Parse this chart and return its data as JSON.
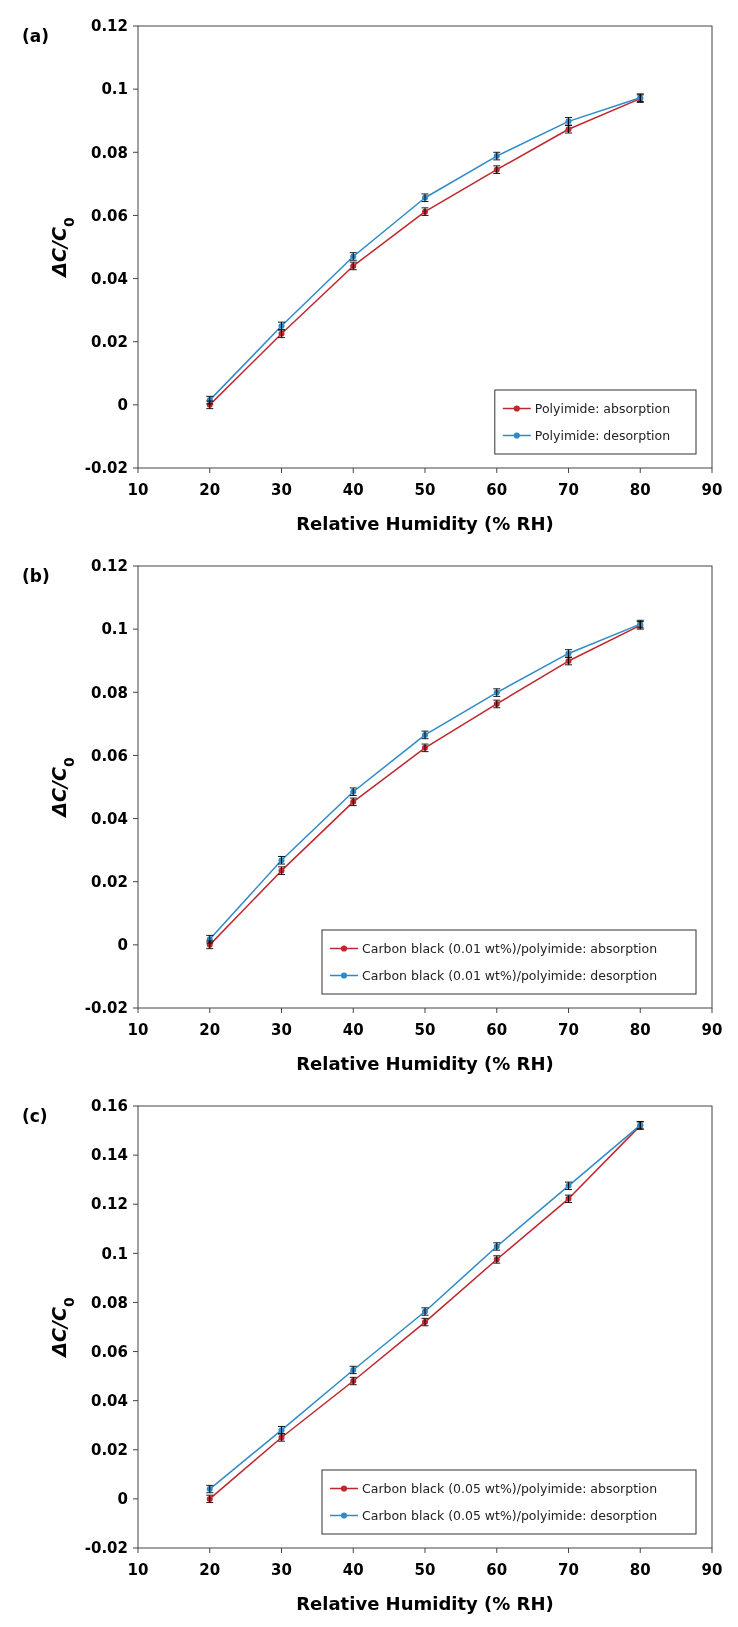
{
  "chart_data": [
    {
      "type": "line",
      "title": "(a)",
      "xlabel": "Relative Humidity (% RH)",
      "ylabel": "ΔC/C$_{0}$",
      "x": [
        20,
        30,
        40,
        50,
        60,
        70,
        80
      ],
      "xlim": [
        10,
        90
      ],
      "xticks": [
        10,
        20,
        30,
        40,
        50,
        60,
        70,
        80,
        90
      ],
      "ylim": [
        -0.02,
        0.12
      ],
      "yticks": [
        -0.02,
        0,
        0.02,
        0.04,
        0.06,
        0.08,
        0.1,
        0.12
      ],
      "grid": false,
      "legend": "bottom right",
      "marker": "circle",
      "line_style": "solid",
      "series": [
        {
          "name": "Polyimide: absorption",
          "color": "#c0262d",
          "values": [
            0,
            0.0225,
            0.044,
            0.0612,
            0.0745,
            0.0873,
            0.097
          ],
          "errors": [
            0.0012,
            0.0012,
            0.0012,
            0.0012,
            0.0012,
            0.0012,
            0.0012
          ]
        },
        {
          "name": "Polyimide: desorption",
          "color": "#2e8bc9",
          "values": [
            0.0015,
            0.025,
            0.047,
            0.0656,
            0.0788,
            0.0898,
            0.0973
          ],
          "errors": [
            0.0012,
            0.0012,
            0.0012,
            0.0012,
            0.0012,
            0.0012,
            0.0012
          ]
        }
      ]
    },
    {
      "type": "line",
      "title": "(b)",
      "xlabel": "Relative Humidity (% RH)",
      "ylabel": "ΔC/C$_{0}$",
      "x": [
        20,
        30,
        40,
        50,
        60,
        70,
        80
      ],
      "xlim": [
        10,
        90
      ],
      "xticks": [
        10,
        20,
        30,
        40,
        50,
        60,
        70,
        80,
        90
      ],
      "ylim": [
        -0.02,
        0.12
      ],
      "yticks": [
        -0.02,
        0,
        0.02,
        0.04,
        0.06,
        0.08,
        0.1,
        0.12
      ],
      "grid": false,
      "legend": "bottom right",
      "marker": "circle",
      "line_style": "solid",
      "series": [
        {
          "name": "Carbon black (0.01 wt%)/polyimide: absorption",
          "color": "#c0262d",
          "values": [
            0,
            0.0235,
            0.0453,
            0.0624,
            0.0763,
            0.0899,
            0.1012
          ],
          "errors": [
            0.0012,
            0.0012,
            0.0012,
            0.0012,
            0.0012,
            0.0012,
            0.0012
          ]
        },
        {
          "name": "Carbon black (0.01 wt%)/polyimide: desorption",
          "color": "#2e8bc9",
          "values": [
            0.0018,
            0.0268,
            0.0485,
            0.0665,
            0.0799,
            0.0923,
            0.1016
          ],
          "errors": [
            0.0012,
            0.0012,
            0.0012,
            0.0012,
            0.0012,
            0.0012,
            0.0012
          ]
        }
      ]
    },
    {
      "type": "line",
      "title": "(c)",
      "xlabel": "Relative Humidity (% RH)",
      "ylabel": "ΔC/C$_{0}$",
      "x": [
        20,
        30,
        40,
        50,
        60,
        70,
        80
      ],
      "xlim": [
        10,
        90
      ],
      "xticks": [
        10,
        20,
        30,
        40,
        50,
        60,
        70,
        80,
        90
      ],
      "ylim": [
        -0.02,
        0.16
      ],
      "yticks": [
        -0.02,
        0,
        0.02,
        0.04,
        0.06,
        0.08,
        0.1,
        0.12,
        0.14,
        0.16
      ],
      "grid": false,
      "legend": "bottom right",
      "marker": "circle",
      "line_style": "solid",
      "series": [
        {
          "name": "Carbon black (0.05 wt%)/polyimide: absorption",
          "color": "#c0262d",
          "values": [
            0,
            0.025,
            0.048,
            0.072,
            0.0975,
            0.1222,
            0.152
          ],
          "errors": [
            0.0015,
            0.0015,
            0.0015,
            0.0015,
            0.0015,
            0.0015,
            0.0015
          ]
        },
        {
          "name": "Carbon black (0.05 wt%)/polyimide: desorption",
          "color": "#2e8bc9",
          "values": [
            0.004,
            0.028,
            0.0525,
            0.0763,
            0.1028,
            0.1275,
            0.1522
          ],
          "errors": [
            0.0015,
            0.0015,
            0.0015,
            0.0015,
            0.0015,
            0.0015,
            0.0015
          ]
        }
      ]
    }
  ]
}
